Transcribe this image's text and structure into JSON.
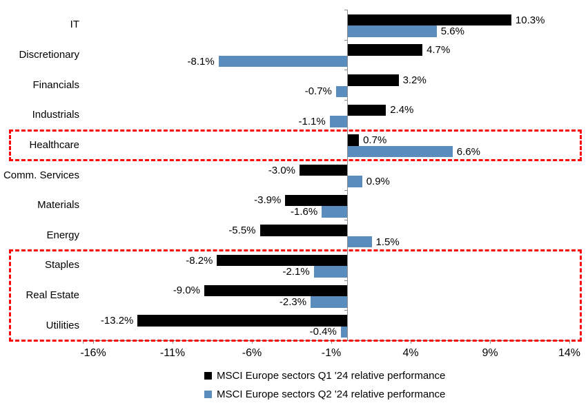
{
  "chart_data": {
    "type": "bar",
    "orientation": "horizontal",
    "title": "",
    "xlabel": "",
    "ylabel": "",
    "categories": [
      "IT",
      "Discretionary",
      "Financials",
      "Industrials",
      "Healthcare",
      "Comm. Services",
      "Materials",
      "Energy",
      "Staples",
      "Real Estate",
      "Utilities"
    ],
    "series": [
      {
        "name": "MSCI Europe sectors Q1 '24 relative performance",
        "color": "#000000",
        "values": [
          10.3,
          4.7,
          3.2,
          2.4,
          0.7,
          -3.0,
          -3.9,
          -5.5,
          -8.2,
          -9.0,
          -13.2
        ],
        "labels": [
          "10.3%",
          "4.7%",
          "3.2%",
          "2.4%",
          "0.7%",
          "-3.0%",
          "-3.9%",
          "-5.5%",
          "-8.2%",
          "-9.0%",
          "-13.2%"
        ]
      },
      {
        "name": "MSCI Europe sectors Q2 '24 relative performance",
        "color": "#5a8cbe",
        "values": [
          5.6,
          -8.1,
          -0.7,
          -1.1,
          6.6,
          0.9,
          -1.6,
          1.5,
          -2.1,
          -2.3,
          -0.4
        ],
        "labels": [
          "5.6%",
          "-8.1%",
          "-0.7%",
          "-1.1%",
          "6.6%",
          "0.9%",
          "-1.6%",
          "1.5%",
          "-2.1%",
          "-2.3%",
          "-0.4%"
        ]
      }
    ],
    "x_ticks": [
      "-16%",
      "-11%",
      "-6%",
      "-1%",
      "4%",
      "9%",
      "14%"
    ],
    "x_tick_values": [
      -16,
      -11,
      -6,
      -1,
      4,
      9,
      14
    ],
    "xlim": [
      -16.65,
      14
    ],
    "grid": false,
    "legend_position": "bottom",
    "axis_color": "#8c8c8c",
    "highlight_color": "#ff0000",
    "highlights": [
      {
        "name": "healthcare-highlight",
        "categories": [
          "Healthcare"
        ]
      },
      {
        "name": "defensives-highlight",
        "categories": [
          "Staples",
          "Real Estate",
          "Utilities"
        ]
      }
    ]
  }
}
